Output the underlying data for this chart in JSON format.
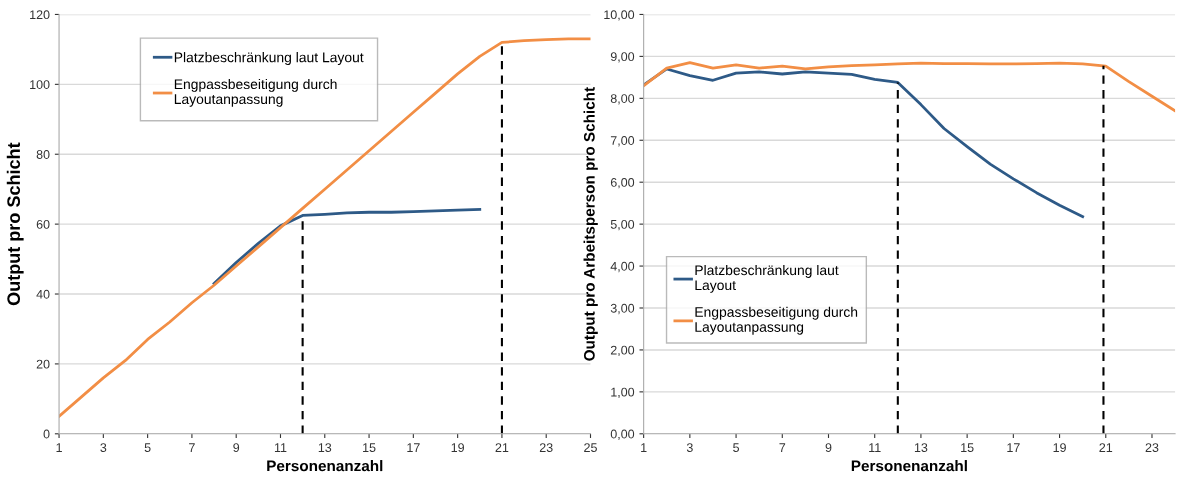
{
  "chart_data": [
    {
      "type": "line",
      "xlabel": "Personenanzahl",
      "ylabel": "Output pro Schicht",
      "xlim": [
        1,
        25
      ],
      "ylim": [
        0,
        120
      ],
      "xticks": [
        1,
        3,
        5,
        7,
        9,
        11,
        13,
        15,
        17,
        19,
        21,
        23,
        25
      ],
      "yticks": [
        0,
        20,
        40,
        60,
        80,
        100,
        120
      ],
      "grid": "y",
      "legend": "top left",
      "marker": "none",
      "line_style": "solid",
      "series": [
        {
          "name": "Platzbeschränkung laut Layout",
          "color": "#2e5a87",
          "x": [
            8,
            9,
            10,
            11,
            12,
            13,
            14,
            15,
            16,
            17,
            18,
            19,
            20
          ],
          "values": [
            43,
            49,
            54.5,
            59.5,
            62.5,
            62.8,
            63.2,
            63.4,
            63.4,
            63.6,
            63.8,
            64,
            64.2
          ]
        },
        {
          "name": "Engpassbeseitigung durch Layoutanpassung",
          "color": "#f28e45",
          "x": [
            1,
            2,
            3,
            4,
            5,
            6,
            7,
            8,
            9,
            10,
            11,
            12,
            13,
            14,
            15,
            16,
            17,
            18,
            19,
            20,
            21,
            22,
            23,
            24,
            25
          ],
          "values": [
            5,
            10.5,
            16,
            21,
            27,
            32,
            37.5,
            42.5,
            48,
            53.5,
            59,
            64.5,
            70,
            75.5,
            81,
            86.5,
            92,
            97.5,
            103,
            108,
            112,
            112.5,
            112.8,
            113,
            113
          ]
        }
      ],
      "ref_lines": [
        {
          "axis": "x",
          "value": 12,
          "color": "#000000",
          "line_style": "dashed"
        },
        {
          "axis": "x",
          "value": 21,
          "color": "#000000",
          "line_style": "dashed"
        }
      ]
    },
    {
      "type": "line",
      "xlabel": "Personenanzahl",
      "ylabel": "Output pro Arbeitsperson pro Schicht",
      "xlim": [
        1,
        24
      ],
      "ylim": [
        0,
        10
      ],
      "xticks": [
        1,
        3,
        5,
        7,
        9,
        11,
        13,
        15,
        17,
        19,
        21,
        23
      ],
      "yticks": [
        {
          "value": 0,
          "label": "0,00"
        },
        {
          "value": 1,
          "label": "1,00"
        },
        {
          "value": 2,
          "label": "2,00"
        },
        {
          "value": 3,
          "label": "3,00"
        },
        {
          "value": 4,
          "label": "4,00"
        },
        {
          "value": 5,
          "label": "5,00"
        },
        {
          "value": 6,
          "label": "6,00"
        },
        {
          "value": 7,
          "label": "7,00"
        },
        {
          "value": 8,
          "label": "8,00"
        },
        {
          "value": 9,
          "label": "9,00"
        },
        {
          "value": 10,
          "label": "10,00"
        }
      ],
      "grid": "y",
      "legend": "bottom left",
      "marker": "none",
      "line_style": "solid",
      "series": [
        {
          "name": "Platzbeschränkung laut Layout",
          "color": "#2e5a87",
          "x": [
            1,
            2,
            3,
            4,
            5,
            6,
            7,
            8,
            9,
            10,
            11,
            12,
            13,
            14,
            15,
            16,
            17,
            18,
            19,
            20
          ],
          "values": [
            8.32,
            8.7,
            8.54,
            8.43,
            8.6,
            8.63,
            8.58,
            8.63,
            8.6,
            8.57,
            8.45,
            8.38,
            7.85,
            7.28,
            6.85,
            6.43,
            6.08,
            5.75,
            5.45,
            5.18
          ]
        },
        {
          "name": "Engpassbeseitigung durch Layoutanpassung",
          "color": "#f28e45",
          "x": [
            1,
            2,
            3,
            4,
            5,
            6,
            7,
            8,
            9,
            10,
            11,
            12,
            13,
            14,
            15,
            16,
            17,
            18,
            19,
            20,
            21,
            22,
            23,
            24
          ],
          "values": [
            8.3,
            8.72,
            8.85,
            8.72,
            8.8,
            8.72,
            8.77,
            8.7,
            8.75,
            8.78,
            8.8,
            8.82,
            8.84,
            8.83,
            8.83,
            8.82,
            8.82,
            8.83,
            8.84,
            8.82,
            8.77,
            8.4,
            8.05,
            7.7
          ]
        }
      ],
      "ref_lines": [
        {
          "axis": "x",
          "value": 12,
          "color": "#000000",
          "line_style": "dashed"
        },
        {
          "axis": "x",
          "value": 20.9,
          "color": "#000000",
          "line_style": "dashed"
        }
      ]
    }
  ]
}
